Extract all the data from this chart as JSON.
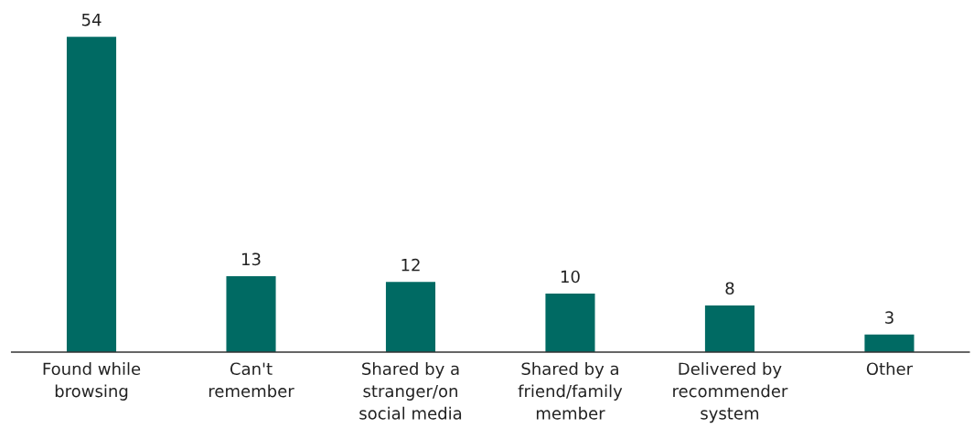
{
  "chart_data": {
    "type": "bar",
    "categories": [
      "Found while\nbrowsing",
      "Can't\nremember",
      "Shared by a\nstranger/on\nsocial media",
      "Shared by a\nfriend/family\nmember",
      "Delivered by\nrecommender\nsystem",
      "Other"
    ],
    "values": [
      54,
      13,
      12,
      10,
      8,
      3
    ],
    "color": "#006a63",
    "tick_labels": "x",
    "data_labels": true,
    "grid": false,
    "legend": false
  }
}
